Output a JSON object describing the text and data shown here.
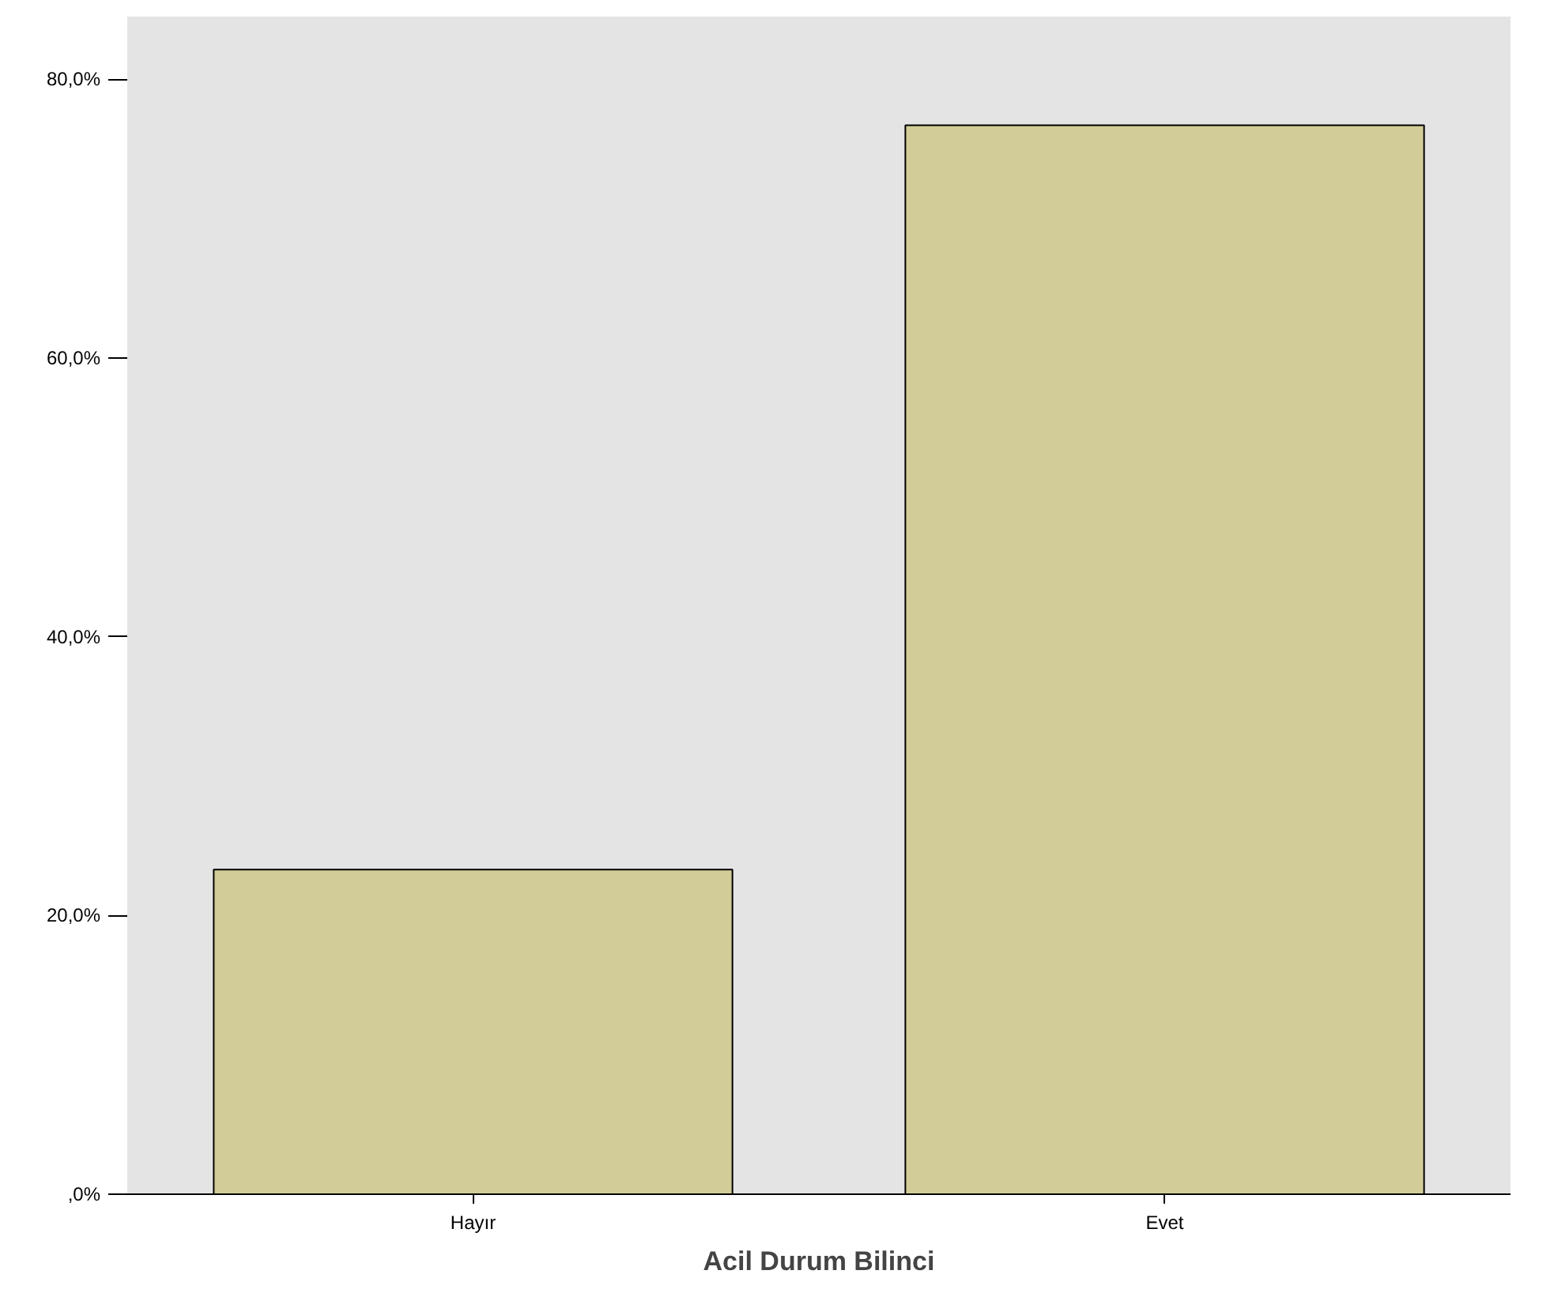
{
  "chart_data": {
    "type": "bar",
    "xlabel": "Acil Durum Bilinci",
    "categories": [
      "Hayır",
      "Evet"
    ],
    "values": [
      23.3,
      76.7
    ],
    "color": "#d2cc98",
    "ylim": [
      0,
      84.5
    ],
    "yticks": [
      {
        "value": 0,
        "label": ",0%"
      },
      {
        "value": 20,
        "label": "20,0%"
      },
      {
        "value": 40,
        "label": "40,0%"
      },
      {
        "value": 60,
        "label": "60,0%"
      },
      {
        "value": 80,
        "label": "80,0%"
      }
    ]
  }
}
